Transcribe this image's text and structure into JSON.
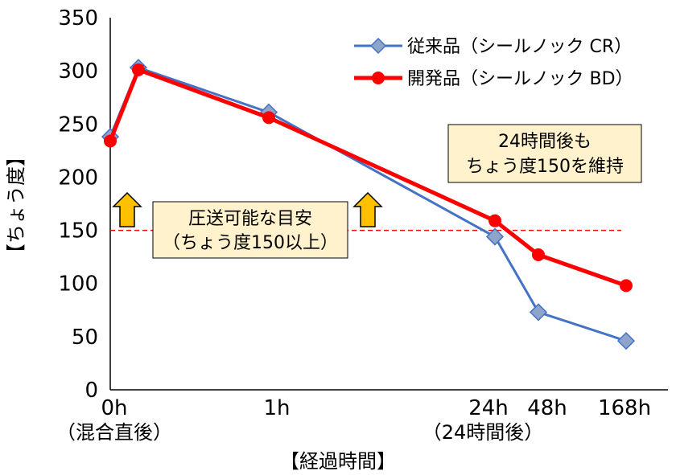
{
  "chart_data": {
    "type": "line",
    "ylabel": "【ちょう度】",
    "xlabel": "【経過時間】",
    "ylim": [
      0,
      350
    ],
    "yticks": [
      "0",
      "50",
      "100",
      "150",
      "200",
      "250",
      "300",
      "350"
    ],
    "x_ticks": [
      {
        "label": "0h",
        "sublabel": "（混合直後）"
      },
      {
        "label": "1h",
        "sublabel": ""
      },
      {
        "label": "24h",
        "sublabel": "（24時間後）"
      },
      {
        "label": "48h",
        "sublabel": ""
      },
      {
        "label": "168h",
        "sublabel": ""
      }
    ],
    "series": [
      {
        "name": "従来品（シールノック CR）",
        "color": "#4472C4",
        "marker": "diamond",
        "points": [
          {
            "x": "0h",
            "y": 238
          },
          {
            "x": "0.1h",
            "y": 303
          },
          {
            "x": "1h",
            "y": 261
          },
          {
            "x": "24h",
            "y": 144
          },
          {
            "x": "48h",
            "y": 73
          },
          {
            "x": "168h",
            "y": 46
          }
        ]
      },
      {
        "name": "開発品（シールノック BD）",
        "color": "#FF0000",
        "marker": "circle",
        "points": [
          {
            "x": "0h",
            "y": 234
          },
          {
            "x": "0.1h",
            "y": 301
          },
          {
            "x": "1h",
            "y": 256
          },
          {
            "x": "24h",
            "y": 159
          },
          {
            "x": "48h",
            "y": 127
          },
          {
            "x": "168h",
            "y": 98
          }
        ]
      }
    ],
    "reference_line": {
      "y": 150,
      "color": "#FF0000",
      "style": "dashed"
    },
    "annotations": {
      "pumpable_box": [
        "圧送可能な目安",
        "（ちょう度150以上）"
      ],
      "maintain_box": [
        "24時間後も",
        "ちょう度150を維持"
      ]
    },
    "grid": false,
    "legend_position": "top-right"
  }
}
